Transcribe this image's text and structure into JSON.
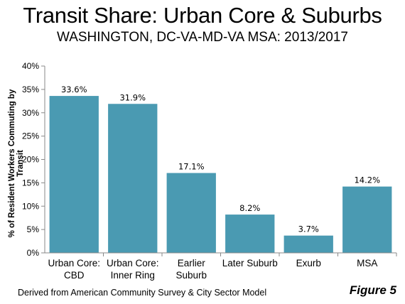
{
  "chart_data": {
    "type": "bar",
    "title": "Transit Share: Urban Core & Suburbs",
    "subtitle": "WASHINGTON, DC-VA-MD-VA MSA: 2013/2017",
    "ylabel": "% of Resident Workers Commuting by Transit",
    "xlabel": "",
    "categories": [
      [
        "Urban Core:",
        "CBD"
      ],
      [
        "Urban Core:",
        "Inner Ring"
      ],
      [
        "Earlier",
        "Suburb"
      ],
      [
        "Later Suburb"
      ],
      [
        "Exurb"
      ],
      [
        "MSA"
      ]
    ],
    "values": [
      33.6,
      31.9,
      17.1,
      8.2,
      3.7,
      14.2
    ],
    "value_labels": [
      "33.6%",
      "31.9%",
      "17.1%",
      "8.2%",
      "3.7%",
      "14.2%"
    ],
    "ylim": [
      0,
      40
    ],
    "yticks": [
      0,
      5,
      10,
      15,
      20,
      25,
      30,
      35,
      40
    ],
    "ytick_labels": [
      "0%",
      "5%",
      "10%",
      "15%",
      "20%",
      "25%",
      "30%",
      "35%",
      "40%"
    ],
    "bar_color": "#4A9AB2",
    "grid": false,
    "legend": "none"
  },
  "footer": {
    "source": "Derived from American Community Survey & City Sector Model",
    "figure_label": "Figure 5"
  }
}
